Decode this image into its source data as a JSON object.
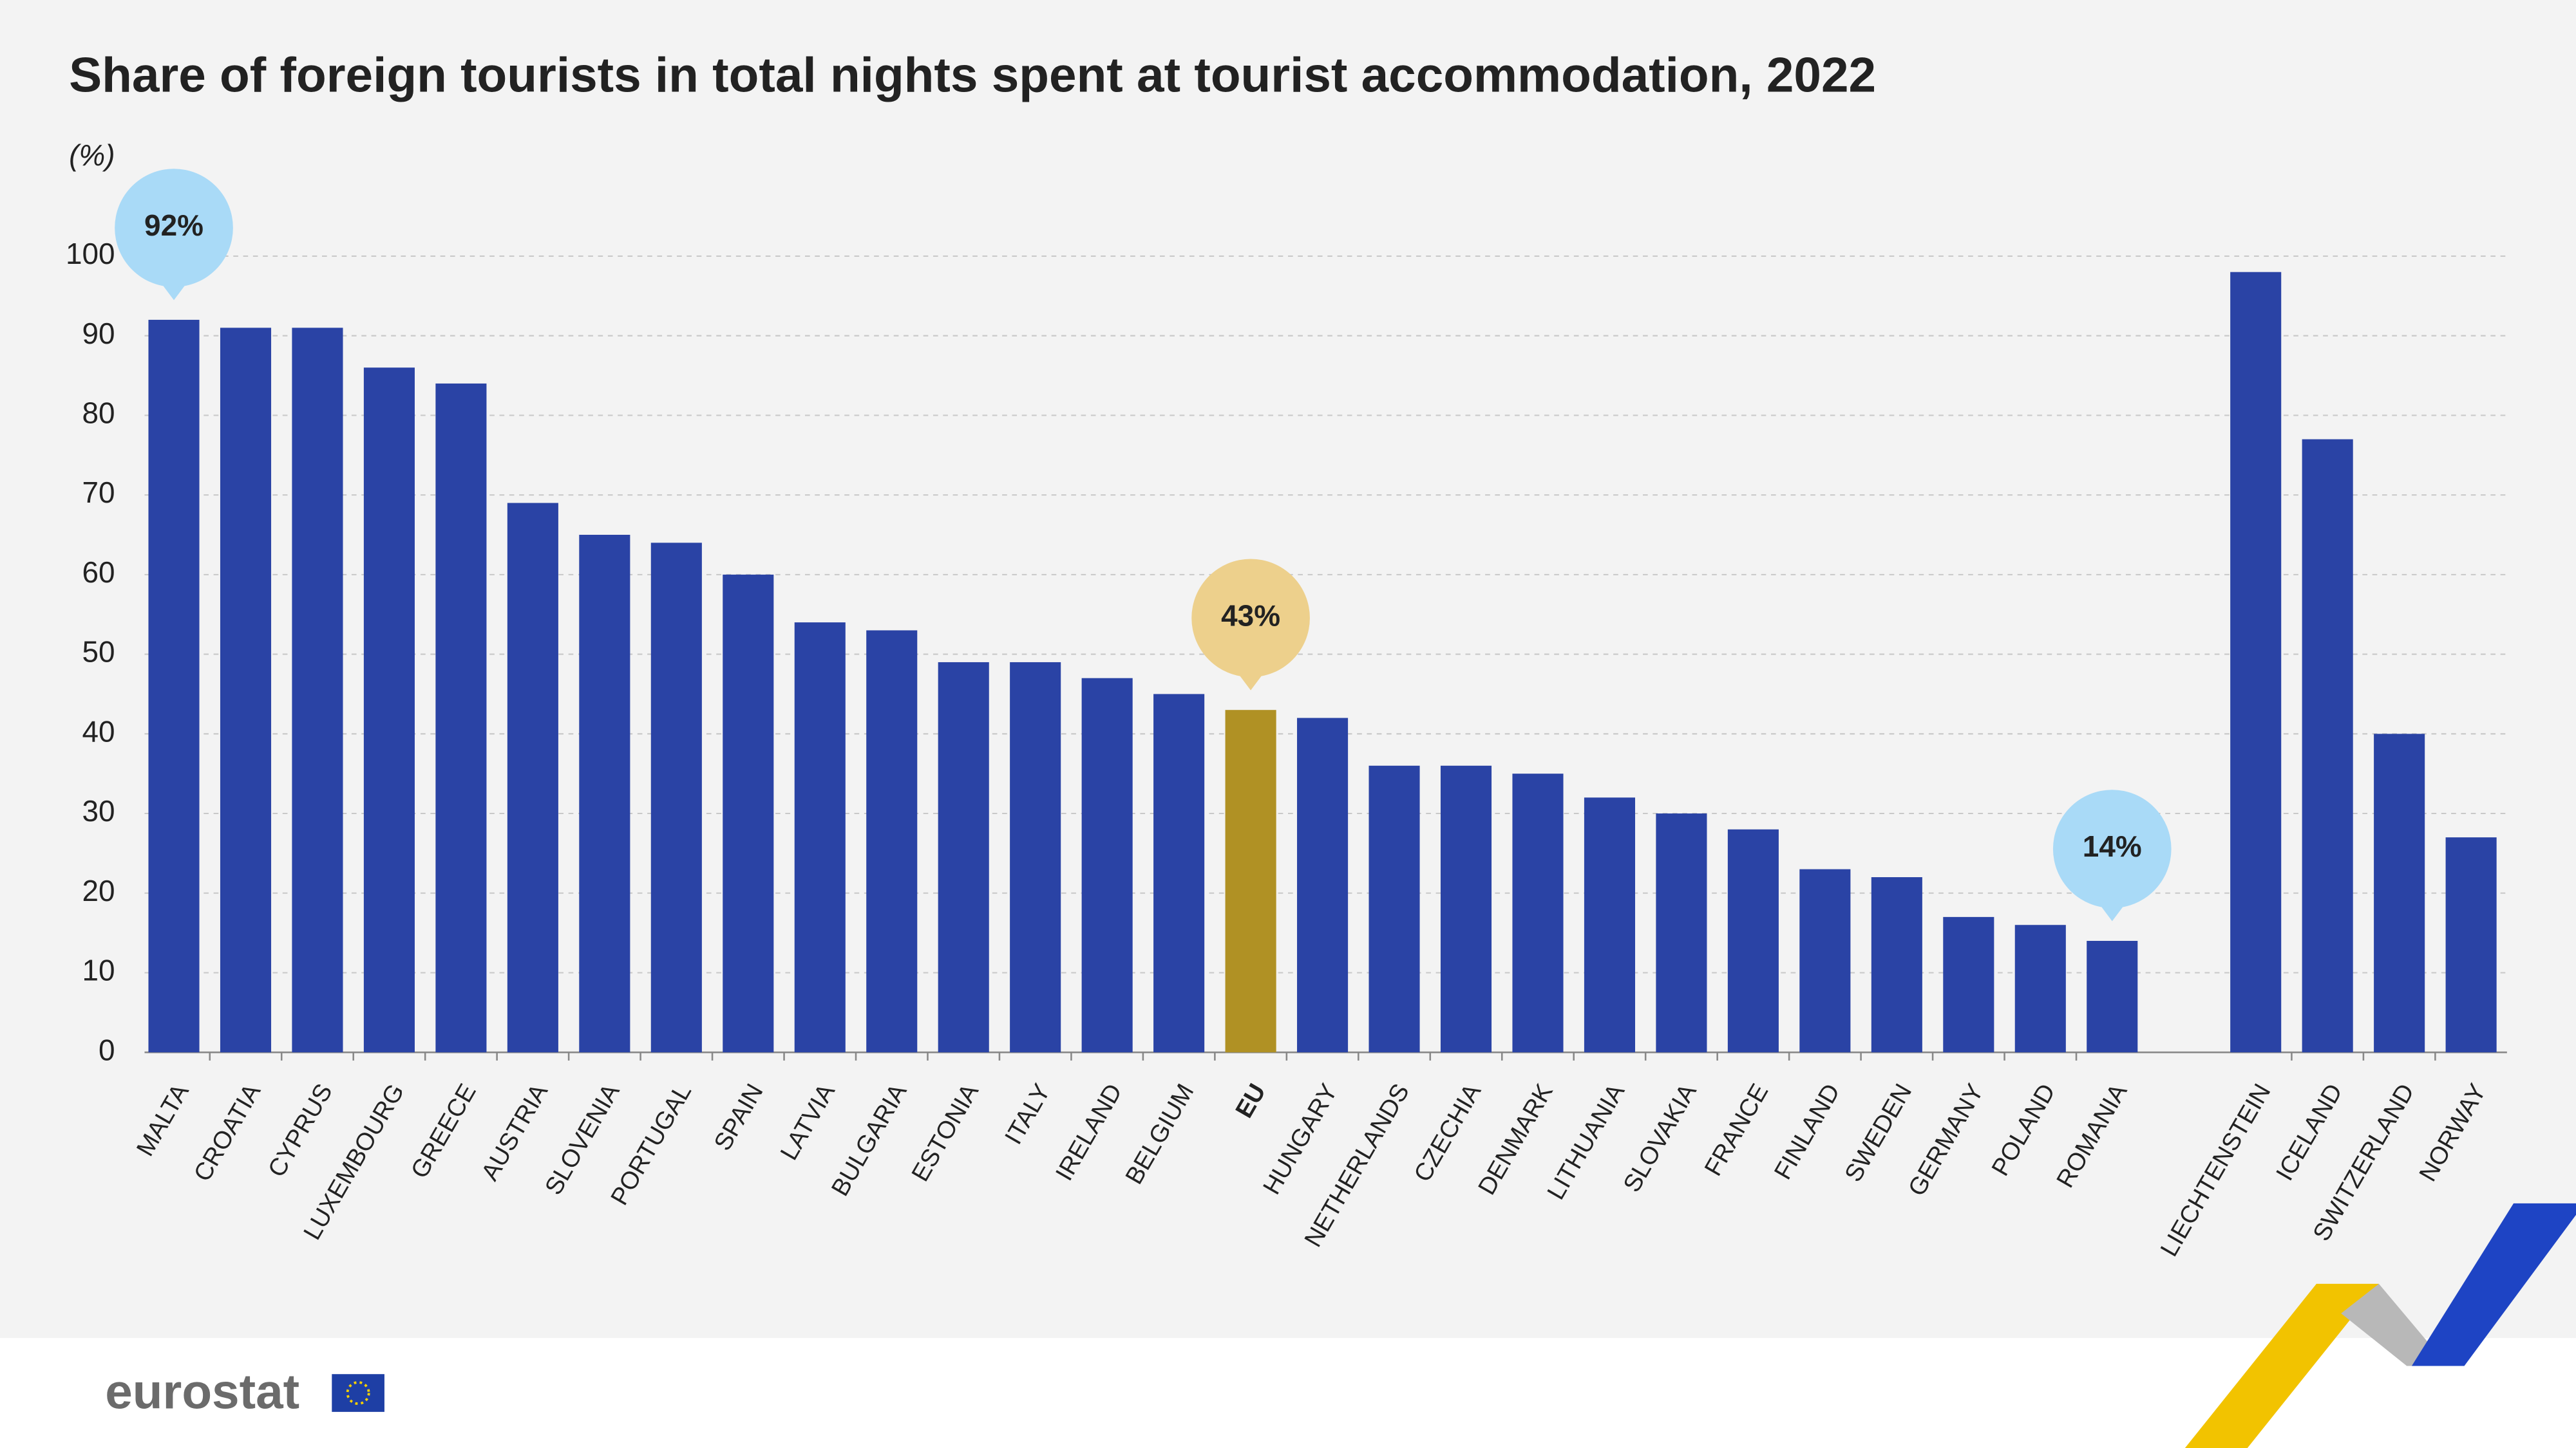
{
  "chart_data": {
    "type": "bar",
    "title": "Share of foreign tourists in total nights spent at tourist accommodation, 2022",
    "y_unit": "(%)",
    "categories": [
      "MALTA",
      "CROATIA",
      "CYPRUS",
      "LUXEMBOURG",
      "GREECE",
      "AUSTRIA",
      "SLOVENIA",
      "PORTUGAL",
      "SPAIN",
      "LATVIA",
      "BULGARIA",
      "ESTONIA",
      "ITALY",
      "IRELAND",
      "BELGIUM",
      "EU",
      "HUNGARY",
      "NETHERLANDS",
      "CZECHIA",
      "DENMARK",
      "LITHUANIA",
      "SLOVAKIA",
      "FRANCE",
      "FINLAND",
      "SWEDEN",
      "GERMANY",
      "POLAND",
      "ROMANIA",
      null,
      "LIECHTENSTEIN",
      "ICELAND",
      "SWITZERLAND",
      "NORWAY"
    ],
    "values": [
      92,
      91,
      91,
      86,
      84,
      69,
      65,
      64,
      60,
      54,
      53,
      49,
      49,
      47,
      45,
      43,
      42,
      36,
      36,
      35,
      32,
      30,
      28,
      23,
      22,
      17,
      16,
      14,
      null,
      98,
      77,
      40,
      27
    ],
    "value_labels": [
      "92%",
      null,
      null,
      null,
      null,
      null,
      null,
      null,
      null,
      null,
      null,
      null,
      null,
      null,
      null,
      "43%",
      null,
      null,
      null,
      null,
      null,
      null,
      null,
      null,
      null,
      null,
      null,
      "14%",
      null,
      null,
      null,
      null,
      null
    ],
    "color": "#2a43a5",
    "bar_colors": [
      null,
      null,
      null,
      null,
      null,
      null,
      null,
      null,
      null,
      null,
      null,
      null,
      null,
      null,
      null,
      "#b09124",
      null,
      null,
      null,
      null,
      null,
      null,
      null,
      null,
      null,
      null,
      null,
      null,
      null,
      null,
      null,
      null,
      null
    ],
    "label_colors": [
      "#a9daf7",
      null,
      null,
      null,
      null,
      null,
      null,
      null,
      null,
      null,
      null,
      null,
      null,
      null,
      null,
      "#edd08c",
      null,
      null,
      null,
      null,
      null,
      null,
      null,
      null,
      null,
      null,
      null,
      "#a9daf7",
      null,
      null,
      null,
      null,
      null
    ],
    "bold_categories": [
      false,
      false,
      false,
      false,
      false,
      false,
      false,
      false,
      false,
      false,
      false,
      false,
      false,
      false,
      false,
      true,
      false,
      false,
      false,
      false,
      false,
      false,
      false,
      false,
      false,
      false,
      false,
      false,
      false,
      false,
      false,
      false,
      false
    ],
    "ylim": [
      0,
      100
    ],
    "yticks": [
      0,
      10,
      20,
      30,
      40,
      50,
      60,
      70,
      80,
      90,
      100
    ],
    "grid": true
  },
  "footer": {
    "logo": "eurostat"
  }
}
